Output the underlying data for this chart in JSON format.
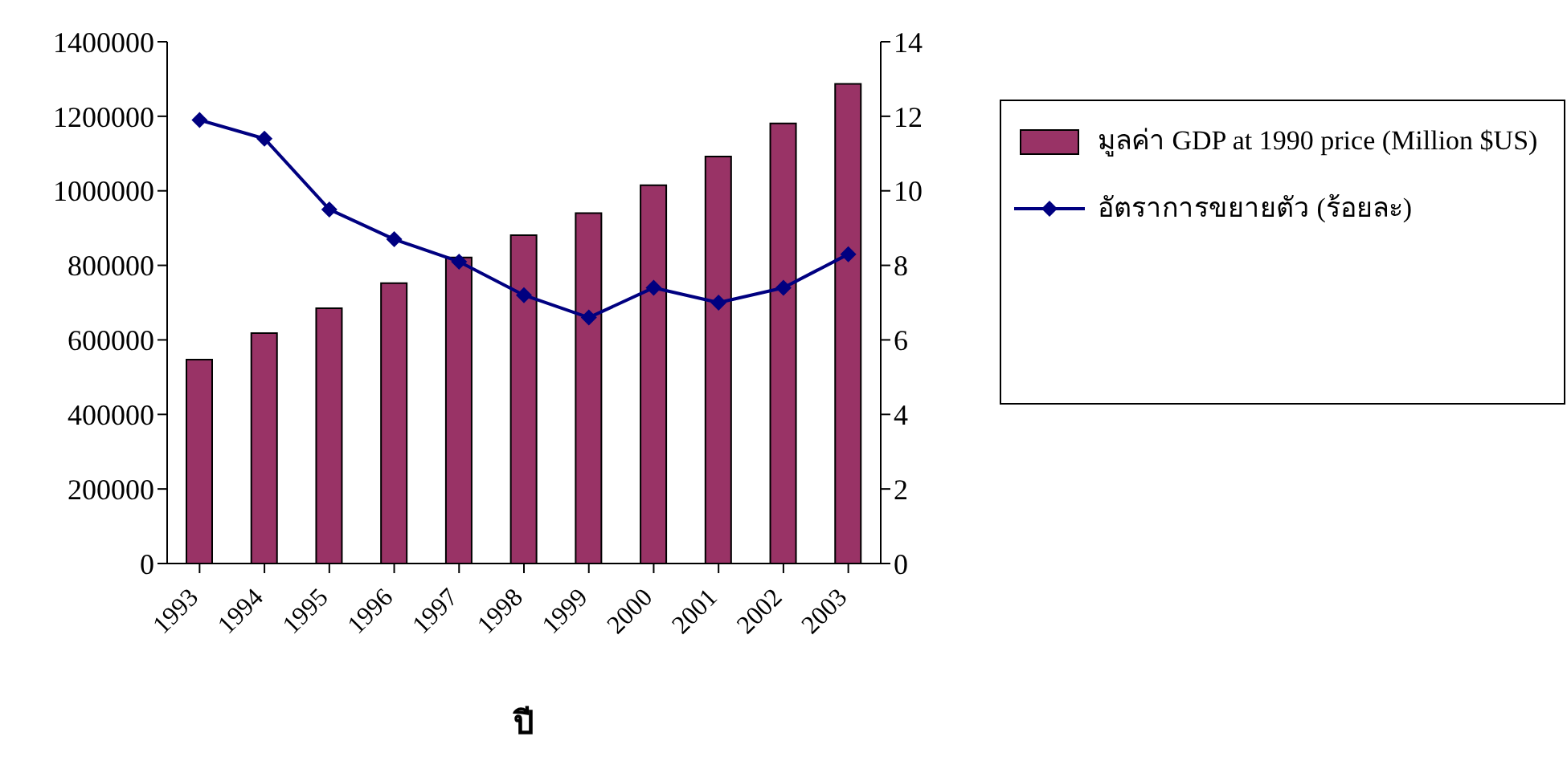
{
  "chart_data": {
    "type": "bar",
    "xlabel": "ปี",
    "categories": [
      "1993",
      "1994",
      "1995",
      "1996",
      "1997",
      "1998",
      "1999",
      "2000",
      "2001",
      "2002",
      "2003"
    ],
    "series": [
      {
        "name": "มูลค่า GDP at 1990 price (Million $US)",
        "color": "#993366",
        "values": [
          547000,
          618000,
          685000,
          752000,
          821000,
          881000,
          940000,
          1015000,
          1092000,
          1181000,
          1287000
        ]
      },
      {
        "name": "อัตราการขยายตัว (ร้อยละ)",
        "type": "line",
        "axis": "y2",
        "color": "#000080",
        "marker": "diamond",
        "values": [
          11.9,
          11.4,
          9.5,
          8.7,
          8.1,
          7.2,
          6.6,
          7.4,
          7.0,
          7.4,
          8.3
        ]
      }
    ],
    "ylim": [
      0,
      1400000
    ],
    "yticks": [
      0,
      200000,
      400000,
      600000,
      800000,
      1000000,
      1200000,
      1400000
    ],
    "y2lim": [
      0,
      14
    ],
    "y2ticks": [
      0,
      2,
      4,
      6,
      8,
      10,
      12,
      14
    ],
    "grid": false,
    "legend": "right"
  }
}
